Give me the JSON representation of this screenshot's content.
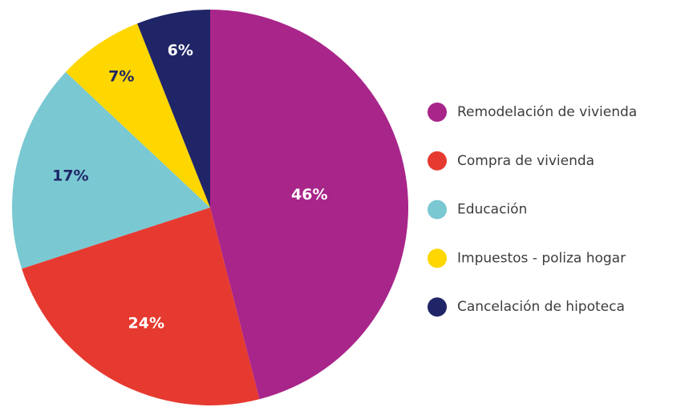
{
  "chart_data": {
    "type": "pie",
    "categories": [
      "Remodelación de vivienda",
      "Compra de vivienda",
      "Educación",
      "Impuestos - poliza hogar",
      "Cancelación de hipoteca"
    ],
    "values": [
      46,
      24,
      17,
      7,
      6
    ],
    "value_labels": [
      "46%",
      "24%",
      "17%",
      "7%",
      "6%"
    ],
    "colors": [
      "#a8258a",
      "#e63a30",
      "#7ac8d2",
      "#fed600",
      "#1f2567"
    ],
    "legend": "right"
  }
}
